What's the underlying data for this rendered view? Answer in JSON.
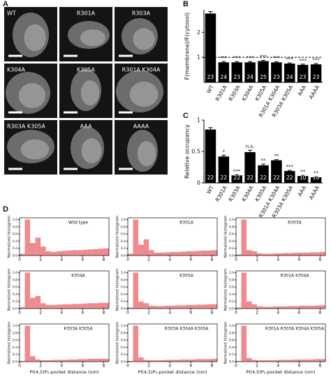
{
  "panels": {
    "a": "A",
    "b": "B",
    "c": "C",
    "d": "D"
  },
  "microscopy": {
    "labels": [
      "WT",
      "R301A",
      "R303A",
      "K304A",
      "K305A",
      "R301A K304A",
      "R303A K305A",
      "AAA",
      "AAAA"
    ]
  },
  "chart_data": [
    {
      "type": "bar",
      "ylabel": "F(membrane)/F(cytosol)",
      "categories": [
        "WT",
        "R301A",
        "R303A",
        "K304A",
        "K305A",
        "R301A K304A",
        "R303A K305A",
        "AAA",
        "AAAA"
      ],
      "values": [
        2.75,
        0.8,
        0.8,
        0.8,
        0.85,
        0.8,
        0.75,
        0.7,
        0.72
      ],
      "errors": [
        0.08,
        0.03,
        0.03,
        0.03,
        0.03,
        0.03,
        0.03,
        0.03,
        0.03
      ],
      "counts": [
        23,
        24,
        23,
        24,
        25,
        23,
        24,
        23,
        23
      ],
      "significance": [
        null,
        "***",
        "***",
        "***",
        "***",
        "***",
        "***",
        "***",
        "***"
      ],
      "color": "#000000",
      "ylim": [
        0,
        2.9
      ],
      "yticks": [
        1,
        2
      ],
      "hline": 1
    },
    {
      "type": "bar",
      "ylabel": "Relative occupancy",
      "categories": [
        "WT",
        "R301A",
        "R303A",
        "K304A",
        "K305A",
        "R301A K304A",
        "R303A K305A",
        "AAA",
        "AAAA"
      ],
      "values": [
        0.85,
        0.42,
        0.12,
        0.49,
        0.28,
        0.36,
        0.19,
        0.11,
        0.09
      ],
      "errors": [
        0.03,
        0.02,
        0.01,
        0.03,
        0.02,
        0.01,
        0.01,
        0.01,
        0.01
      ],
      "counts": [
        22,
        22,
        22,
        22,
        22,
        22,
        22,
        10,
        10
      ],
      "significance": [
        null,
        "*",
        "***",
        "n.s.",
        "**",
        "**",
        "***",
        "**",
        "**"
      ],
      "color": "#000000",
      "ylim": [
        0,
        1
      ],
      "yticks": [
        0,
        0.5,
        1
      ]
    },
    {
      "type": "histogram",
      "title": "Wild type",
      "ylabel": "Normalized histogram",
      "color": "#ef8a8d",
      "bins": [
        0,
        0.5,
        1,
        1.5,
        2,
        2.5,
        3,
        3.5,
        4,
        4.5,
        5,
        5.5,
        6,
        6.5,
        7,
        7.5,
        8,
        8.5
      ],
      "values": [
        0.05,
        1.0,
        0.35,
        0.5,
        0.25,
        0.12,
        0.1,
        0.12,
        0.13,
        0.14,
        0.15,
        0.15,
        0.16,
        0.17,
        0.18,
        0.19,
        0.2
      ],
      "xlim": [
        0,
        8.5
      ],
      "ylim": [
        0,
        1.05
      ],
      "xticks": [
        0,
        2,
        4,
        6,
        8
      ],
      "yticks": [
        {
          "value": 0,
          "label": "0.0"
        },
        0.2,
        0.4,
        0.6,
        0.8,
        {
          "value": 1,
          "label": "1.0"
        }
      ]
    },
    {
      "type": "histogram",
      "title": "R301A",
      "ylabel": "Normalized histogram",
      "color": "#ef8a8d",
      "bins": [
        0,
        0.5,
        1,
        1.5,
        2,
        2.5,
        3,
        3.5,
        4,
        4.5,
        5,
        5.5,
        6,
        6.5,
        7,
        7.5,
        8,
        8.5
      ],
      "values": [
        0.05,
        1.0,
        0.3,
        0.45,
        0.15,
        0.08,
        0.08,
        0.09,
        0.1,
        0.1,
        0.11,
        0.12,
        0.12,
        0.13,
        0.14,
        0.14,
        0.15
      ],
      "xlim": [
        0,
        8.5
      ],
      "ylim": [
        0,
        1.05
      ],
      "xticks": [
        0,
        2,
        4,
        6,
        8
      ],
      "yticks": [
        {
          "value": 0,
          "label": "0.0"
        },
        0.2,
        0.4,
        0.6,
        0.8,
        {
          "value": 1,
          "label": "1.0"
        }
      ]
    },
    {
      "type": "histogram",
      "title": "R303A",
      "ylabel": "Normalized histogram",
      "color": "#ef8a8d",
      "bins": [
        0,
        0.5,
        1,
        1.5,
        2,
        2.5,
        3,
        3.5,
        4,
        4.5,
        5,
        5.5,
        6,
        6.5,
        7,
        7.5,
        8,
        8.5
      ],
      "values": [
        0.03,
        1.0,
        0.15,
        0.12,
        0.06,
        0.05,
        0.05,
        0.06,
        0.06,
        0.07,
        0.07,
        0.08,
        0.08,
        0.08,
        0.09,
        0.09,
        0.1
      ],
      "xlim": [
        0,
        8.5
      ],
      "ylim": [
        0,
        1.05
      ],
      "xticks": [
        0,
        2,
        4,
        6,
        8
      ],
      "yticks": [
        {
          "value": 0,
          "label": "0.0"
        },
        0.2,
        0.4,
        0.6,
        0.8,
        {
          "value": 1,
          "label": "1.0"
        }
      ]
    },
    {
      "type": "histogram",
      "title": "K304A",
      "ylabel": "Normalized histogram",
      "color": "#ef8a8d",
      "bins": [
        0,
        0.5,
        1,
        1.5,
        2,
        2.5,
        3,
        3.5,
        4,
        4.5,
        5,
        5.5,
        6,
        6.5,
        7,
        7.5,
        8,
        8.5
      ],
      "values": [
        0.04,
        1.0,
        0.3,
        0.35,
        0.15,
        0.1,
        0.1,
        0.11,
        0.12,
        0.12,
        0.13,
        0.13,
        0.14,
        0.15,
        0.15,
        0.16,
        0.16
      ],
      "xlim": [
        0,
        8.5
      ],
      "ylim": [
        0,
        1.05
      ],
      "xticks": [
        0,
        2,
        4,
        6,
        8
      ],
      "yticks": [
        {
          "value": 0,
          "label": "0.0"
        },
        0.2,
        0.4,
        0.6,
        0.8,
        {
          "value": 1,
          "label": "1.0"
        }
      ]
    },
    {
      "type": "histogram",
      "title": "K305A",
      "ylabel": "Normalized histogram",
      "color": "#ef8a8d",
      "bins": [
        0,
        0.5,
        1,
        1.5,
        2,
        2.5,
        3,
        3.5,
        4,
        4.5,
        5,
        5.5,
        6,
        6.5,
        7,
        7.5,
        8,
        8.5
      ],
      "values": [
        0.03,
        1.0,
        0.2,
        0.15,
        0.08,
        0.07,
        0.07,
        0.08,
        0.08,
        0.09,
        0.09,
        0.1,
        0.1,
        0.11,
        0.11,
        0.12,
        0.12
      ],
      "xlim": [
        0,
        8.5
      ],
      "ylim": [
        0,
        1.05
      ],
      "xticks": [
        0,
        2,
        4,
        6,
        8
      ],
      "yticks": [
        {
          "value": 0,
          "label": "0.0"
        },
        0.2,
        0.4,
        0.6,
        0.8,
        {
          "value": 1,
          "label": "1.0"
        }
      ]
    },
    {
      "type": "histogram",
      "title": "R301A K304A",
      "ylabel": "Normalized histogram",
      "color": "#ef8a8d",
      "bins": [
        0,
        0.5,
        1,
        1.5,
        2,
        2.5,
        3,
        3.5,
        4,
        4.5,
        5,
        5.5,
        6,
        6.5,
        7,
        7.5,
        8,
        8.5
      ],
      "values": [
        0.03,
        1.0,
        0.2,
        0.12,
        0.06,
        0.05,
        0.05,
        0.06,
        0.06,
        0.06,
        0.07,
        0.07,
        0.08,
        0.08,
        0.08,
        0.09,
        0.09
      ],
      "xlim": [
        0,
        8.5
      ],
      "ylim": [
        0,
        1.05
      ],
      "xticks": [
        0,
        2,
        4,
        6,
        8
      ],
      "yticks": [
        {
          "value": 0,
          "label": "0.0"
        },
        0.2,
        0.4,
        0.6,
        0.8,
        {
          "value": 1,
          "label": "1.0"
        }
      ]
    },
    {
      "type": "histogram",
      "title": "R303A K305A",
      "ylabel": "Normalized histogram",
      "xlabel": "PI(4,5)P₂-pocket distance (nm)",
      "color": "#ef8a8d",
      "bins": [
        0,
        0.5,
        1,
        1.5,
        2,
        2.5,
        3,
        3.5,
        4,
        4.5,
        5,
        5.5,
        6,
        6.5,
        7,
        7.5,
        8,
        8.5
      ],
      "values": [
        0.02,
        1.0,
        0.15,
        0.06,
        0.04,
        0.04,
        0.05,
        0.05,
        0.05,
        0.06,
        0.06,
        0.07,
        0.07,
        0.08,
        0.08,
        0.08,
        0.08
      ],
      "xlim": [
        0,
        8.5
      ],
      "ylim": [
        0,
        1.05
      ],
      "xticks": [
        0,
        2,
        4,
        6,
        8
      ],
      "yticks": [
        {
          "value": 0,
          "label": "0.0"
        },
        0.2,
        0.4,
        0.6,
        0.8,
        {
          "value": 1,
          "label": "1.0"
        }
      ]
    },
    {
      "type": "histogram",
      "title": "R303A K304A K305A",
      "ylabel": "Normalized histogram",
      "xlabel": "PI(4,5)P₂-pocket distance (nm)",
      "color": "#ef8a8d",
      "bins": [
        0,
        0.5,
        1,
        1.5,
        2,
        2.5,
        3,
        3.5,
        4,
        4.5,
        5,
        5.5,
        6,
        6.5,
        7,
        7.5,
        8,
        8.5
      ],
      "values": [
        0.02,
        1.0,
        0.12,
        0.05,
        0.04,
        0.04,
        0.04,
        0.05,
        0.05,
        0.05,
        0.06,
        0.06,
        0.06,
        0.07,
        0.07,
        0.07,
        0.08
      ],
      "xlim": [
        0,
        8.5
      ],
      "ylim": [
        0,
        1.05
      ],
      "xticks": [
        0,
        2,
        4,
        6,
        8
      ],
      "yticks": [
        {
          "value": 0,
          "label": "0.0"
        },
        0.2,
        0.4,
        0.6,
        0.8,
        {
          "value": 1,
          "label": "1.0"
        }
      ]
    },
    {
      "type": "histogram",
      "title": "R301A R303A K304A K305A",
      "ylabel": "Normalized histogram",
      "xlabel": "PI(4,5)P₂-pocket distance (nm)",
      "color": "#ef8a8d",
      "bins": [
        0,
        0.5,
        1,
        1.5,
        2,
        2.5,
        3,
        3.5,
        4,
        4.5,
        5,
        5.5,
        6,
        6.5,
        7,
        7.5,
        8,
        8.5
      ],
      "values": [
        0.02,
        1.0,
        0.1,
        0.05,
        0.04,
        0.04,
        0.04,
        0.04,
        0.05,
        0.05,
        0.05,
        0.06,
        0.06,
        0.06,
        0.06,
        0.07,
        0.07
      ],
      "xlim": [
        0,
        8.5
      ],
      "ylim": [
        0,
        1.05
      ],
      "xticks": [
        0,
        2,
        4,
        6,
        8
      ],
      "yticks": [
        {
          "value": 0,
          "label": "0.0"
        },
        0.2,
        0.4,
        0.6,
        0.8,
        {
          "value": 1,
          "label": "1.0"
        }
      ]
    }
  ]
}
